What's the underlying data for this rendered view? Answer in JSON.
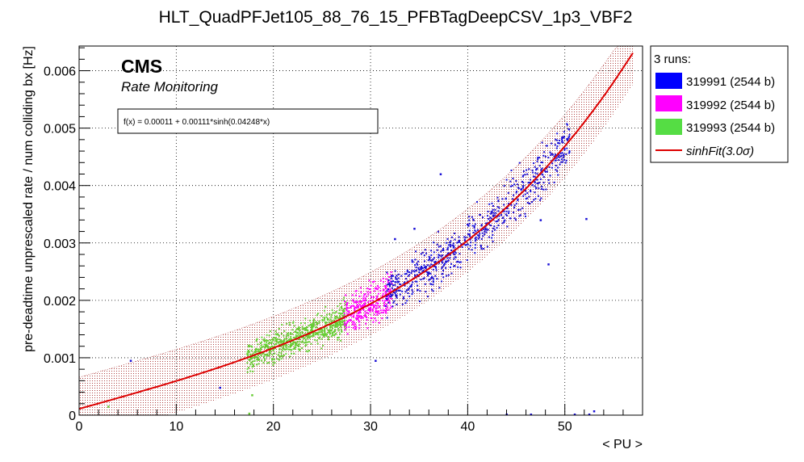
{
  "title": "HLT_QuadPFJet105_88_76_15_PFBTagDeepCSV_1p3_VBF2",
  "cms_label": "CMS",
  "cms_sublabel": "Rate Monitoring",
  "fit_formula": "f(x) = 0.00011 + 0.00111*sinh(0.04248*x)",
  "legend": {
    "header": "3 runs:",
    "entries": [
      {
        "label": "319991 (2544 b)",
        "color": "#0000ff",
        "kind": "box"
      },
      {
        "label": "319992 (2544 b)",
        "color": "#ff00ff",
        "kind": "box"
      },
      {
        "label": "319993 (2544 b)",
        "color": "#55dd44",
        "kind": "box"
      },
      {
        "label": "sinhFit(3.0σ)",
        "color": "#dd0000",
        "kind": "line"
      }
    ]
  },
  "colors": {
    "run_319991": "#1a10d6",
    "run_319992": "#ff00ff",
    "run_319993": "#66cc33",
    "fit": "#dd0000",
    "band": "#a02020"
  },
  "chart_data": {
    "type": "scatter",
    "title": "HLT_QuadPFJet105_88_76_15_PFBTagDeepCSV_1p3_VBF2",
    "xlabel": "< PU >",
    "ylabel": "pre-deadtime unprescaled rate / num colliding bx [Hz]",
    "xlim": [
      0,
      58
    ],
    "ylim": [
      0,
      0.00643
    ],
    "x_ticks": [
      0,
      10,
      20,
      30,
      40,
      50
    ],
    "x_tick_labels": [
      "0",
      "10",
      "20",
      "30",
      "40",
      "50"
    ],
    "y_ticks": [
      0,
      0.001,
      0.002,
      0.003,
      0.004,
      0.005,
      0.006
    ],
    "y_tick_labels": [
      "0",
      "0.001",
      "0.002",
      "0.003",
      "0.004",
      "0.005",
      "0.006"
    ],
    "grid": true,
    "legend_position": "outside-right",
    "fit": {
      "name": "sinhFit(3.0σ)",
      "a": 0.00011,
      "b": 0.00111,
      "c": 0.04248,
      "band_sigma": 3.0,
      "band_halfwidth": 0.00055
    },
    "series": [
      {
        "name": "319991 (2544 b)",
        "x_range": [
          31.5,
          50.5
        ],
        "y_center_rule": "fit",
        "spread": 0.00017,
        "approx_points": 700,
        "outliers": [
          [
            5.3,
            0.00095
          ],
          [
            14.5,
            0.00048
          ],
          [
            30.5,
            0.00095
          ],
          [
            32.5,
            0.00307
          ],
          [
            34.5,
            0.00325
          ],
          [
            37.2,
            0.0042
          ],
          [
            47.5,
            0.0034
          ],
          [
            48.3,
            0.00263
          ],
          [
            52.2,
            0.00342
          ],
          [
            44,
            1e-05
          ],
          [
            46.5,
            1e-05
          ],
          [
            51,
            1e-05
          ],
          [
            52.5,
            1e-05
          ],
          [
            53,
            7e-05
          ]
        ]
      },
      {
        "name": "319992 (2544 b)",
        "x_range": [
          27.3,
          32.2
        ],
        "y_center_rule": "fit",
        "spread": 0.00015,
        "approx_points": 300,
        "outliers": []
      },
      {
        "name": "319993 (2544 b)",
        "x_range": [
          17.3,
          27.5
        ],
        "y_center_rule": "fit",
        "spread": 0.00012,
        "approx_points": 650,
        "outliers": [
          [
            17.8,
            0.00035
          ],
          [
            17.5,
            3e-05
          ],
          [
            3.0,
            0.00015
          ]
        ]
      }
    ]
  }
}
